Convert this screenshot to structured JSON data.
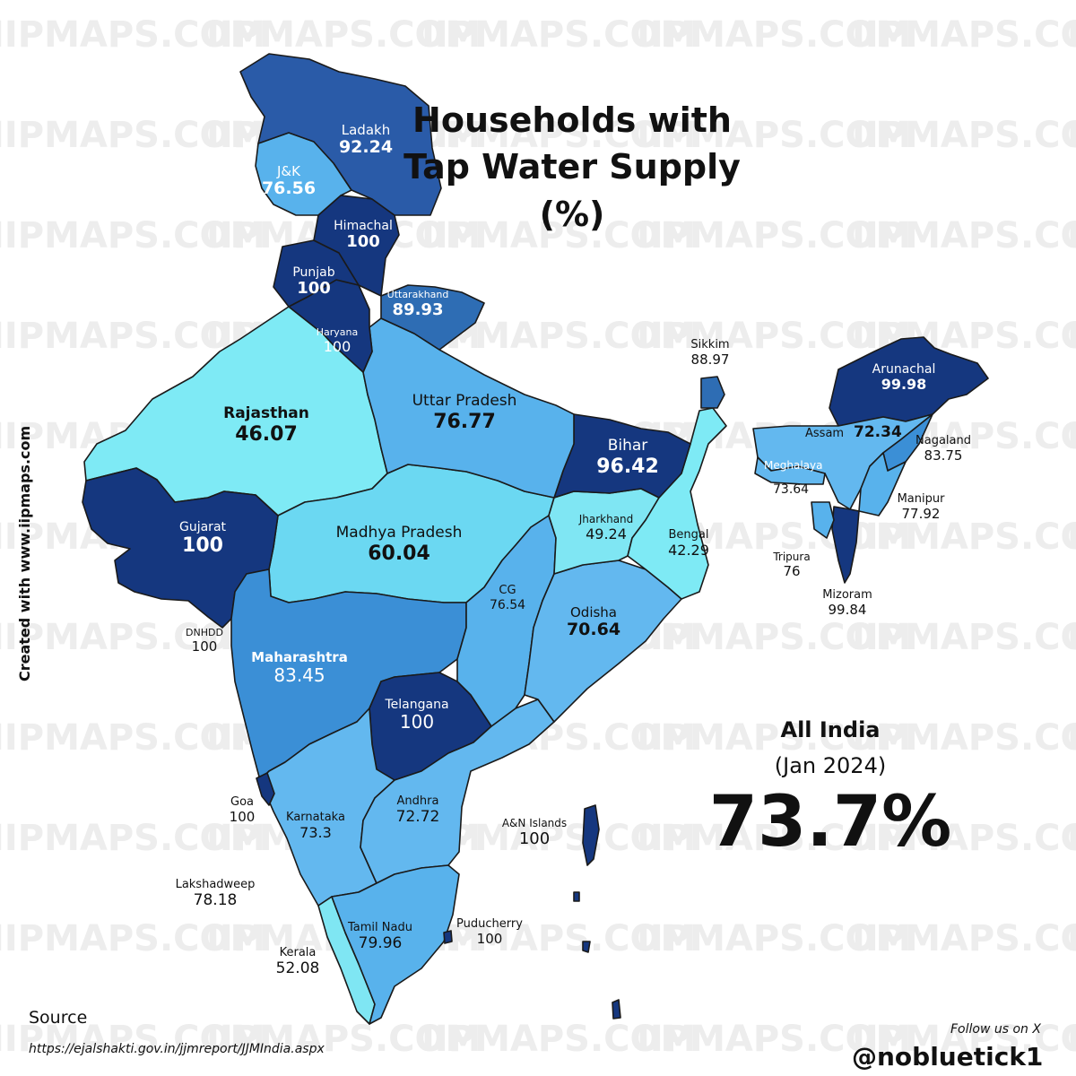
{
  "watermark": "IIPMAPS.COM",
  "title": {
    "line1": "Households with",
    "line2": "Tap Water Supply",
    "line3": "(%)"
  },
  "colors": {
    "c100": "#15377f",
    "c90": "#2a5ba8",
    "c88": "#2e6db4",
    "c80": "#3b8fd6",
    "c75": "#58b2ec",
    "c70": "#63b8ef",
    "c60": "#6bd8f2",
    "c50": "#7fe6f3",
    "c40": "#7eeaf5",
    "border": "#1a1a1a"
  },
  "states": [
    {
      "id": "ladakh",
      "name": "Ladakh",
      "value": "92.24",
      "fill": "c90"
    },
    {
      "id": "jk",
      "name": "J&K",
      "value": "76.56",
      "fill": "c75"
    },
    {
      "id": "himachal",
      "name": "Himachal",
      "value": "100",
      "fill": "c100"
    },
    {
      "id": "punjab",
      "name": "Punjab",
      "value": "100",
      "fill": "c100"
    },
    {
      "id": "uttarakhand",
      "name": "Uttarakhand",
      "value": "89.93",
      "fill": "c88"
    },
    {
      "id": "haryana",
      "name": "Haryana",
      "value": "100",
      "fill": "c100"
    },
    {
      "id": "rajasthan",
      "name": "Rajasthan",
      "value": "46.07",
      "fill": "c40"
    },
    {
      "id": "up",
      "name": "Uttar Pradesh",
      "value": "76.77",
      "fill": "c75"
    },
    {
      "id": "bihar",
      "name": "Bihar",
      "value": "96.42",
      "fill": "c100"
    },
    {
      "id": "sikkim",
      "name": "Sikkim",
      "value": "88.97",
      "fill": "c88"
    },
    {
      "id": "arunachal",
      "name": "Arunachal",
      "value": "99.98",
      "fill": "c100"
    },
    {
      "id": "assam",
      "name": "Assam",
      "value": "72.34",
      "fill": "c70"
    },
    {
      "id": "meghalaya",
      "name": "Meghalaya",
      "value": "73.64",
      "fill": "c70"
    },
    {
      "id": "nagaland",
      "name": "Nagaland",
      "value": "83.75",
      "fill": "c80"
    },
    {
      "id": "manipur",
      "name": "Manipur",
      "value": "77.92",
      "fill": "c75"
    },
    {
      "id": "tripura",
      "name": "Tripura",
      "value": "76",
      "fill": "c75"
    },
    {
      "id": "mizoram",
      "name": "Mizoram",
      "value": "99.84",
      "fill": "c100"
    },
    {
      "id": "gujarat",
      "name": "Gujarat",
      "value": "100",
      "fill": "c100"
    },
    {
      "id": "mp",
      "name": "Madhya Pradesh",
      "value": "60.04",
      "fill": "c60"
    },
    {
      "id": "jharkhand",
      "name": "Jharkhand",
      "value": "49.24",
      "fill": "c50"
    },
    {
      "id": "bengal",
      "name": "Bengal",
      "value": "42.29",
      "fill": "c40"
    },
    {
      "id": "cg",
      "name": "CG",
      "value": "76.54",
      "fill": "c75"
    },
    {
      "id": "odisha",
      "name": "Odisha",
      "value": "70.64",
      "fill": "c70"
    },
    {
      "id": "dnhdd",
      "name": "DNHDD",
      "value": "100",
      "fill": "c100"
    },
    {
      "id": "maharashtra",
      "name": "Maharashtra",
      "value": "83.45",
      "fill": "c80"
    },
    {
      "id": "telangana",
      "name": "Telangana",
      "value": "100",
      "fill": "c100"
    },
    {
      "id": "goa",
      "name": "Goa",
      "value": "100",
      "fill": "c100"
    },
    {
      "id": "karnataka",
      "name": "Karnataka",
      "value": "73.3",
      "fill": "c70"
    },
    {
      "id": "andhra",
      "name": "Andhra",
      "value": "72.72",
      "fill": "c70"
    },
    {
      "id": "an",
      "name": "A&N Islands",
      "value": "100",
      "fill": "c100"
    },
    {
      "id": "lakshadweep",
      "name": "Lakshadweep",
      "value": "78.18",
      "fill": "c75"
    },
    {
      "id": "tamilnadu",
      "name": "Tamil Nadu",
      "value": "79.96",
      "fill": "c75"
    },
    {
      "id": "puducherry",
      "name": "Puducherry",
      "value": "100",
      "fill": "c100"
    },
    {
      "id": "kerala",
      "name": "Kerala",
      "value": "52.08",
      "fill": "c50"
    }
  ],
  "all_india": {
    "label": "All India",
    "date": "(Jan 2024)",
    "value": "73.7%"
  },
  "credit": "Created with www.iipmaps.com",
  "source": {
    "label": "Source",
    "url": "https://ejalshakti.gov.in/jjmreport/JJMIndia.aspx"
  },
  "follow": "Follow us on X",
  "handle": "@nobluetick1"
}
